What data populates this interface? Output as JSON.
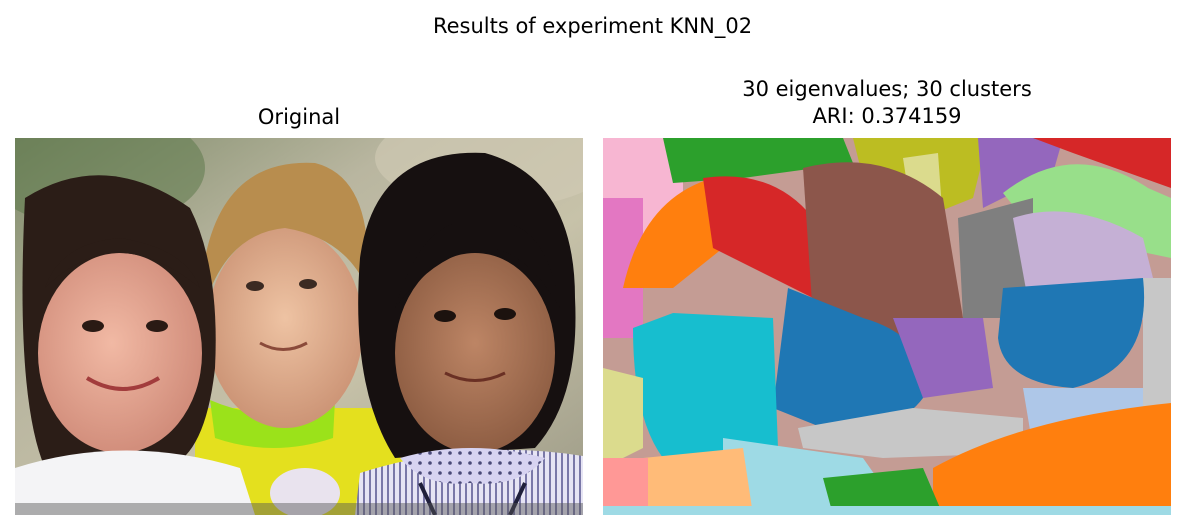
{
  "figure": {
    "suptitle": "Results of experiment KNN_02"
  },
  "panels": [
    {
      "title_lines": [
        "Original"
      ],
      "image": "photograph of three smiling children"
    },
    {
      "title_lines": [
        "30 eigenvalues; 30 clusters",
        "ARI: 0.374159"
      ],
      "image": "spectral clustering segmentation map"
    }
  ],
  "palette": {
    "tab_blue": "#1f77b4",
    "tab_light_blue": "#aec7e8",
    "tab_orange": "#ff7f0e",
    "tab_light_orange": "#ffbb78",
    "tab_green": "#2ca02c",
    "tab_light_green": "#98df8a",
    "tab_red": "#d62728",
    "tab_light_red": "#ff9896",
    "tab_purple": "#9467bd",
    "tab_light_purple": "#c5b0d5",
    "tab_brown": "#8c564b",
    "tab_light_brown": "#c49c94",
    "tab_pink": "#e377c2",
    "tab_light_pink": "#f7b6d2",
    "tab_gray": "#7f7f7f",
    "tab_light_gray": "#c7c7c7",
    "tab_olive": "#bcbd22",
    "tab_light_olive": "#dbdb8d",
    "tab_cyan": "#17becf",
    "tab_light_cyan": "#9edae5"
  }
}
